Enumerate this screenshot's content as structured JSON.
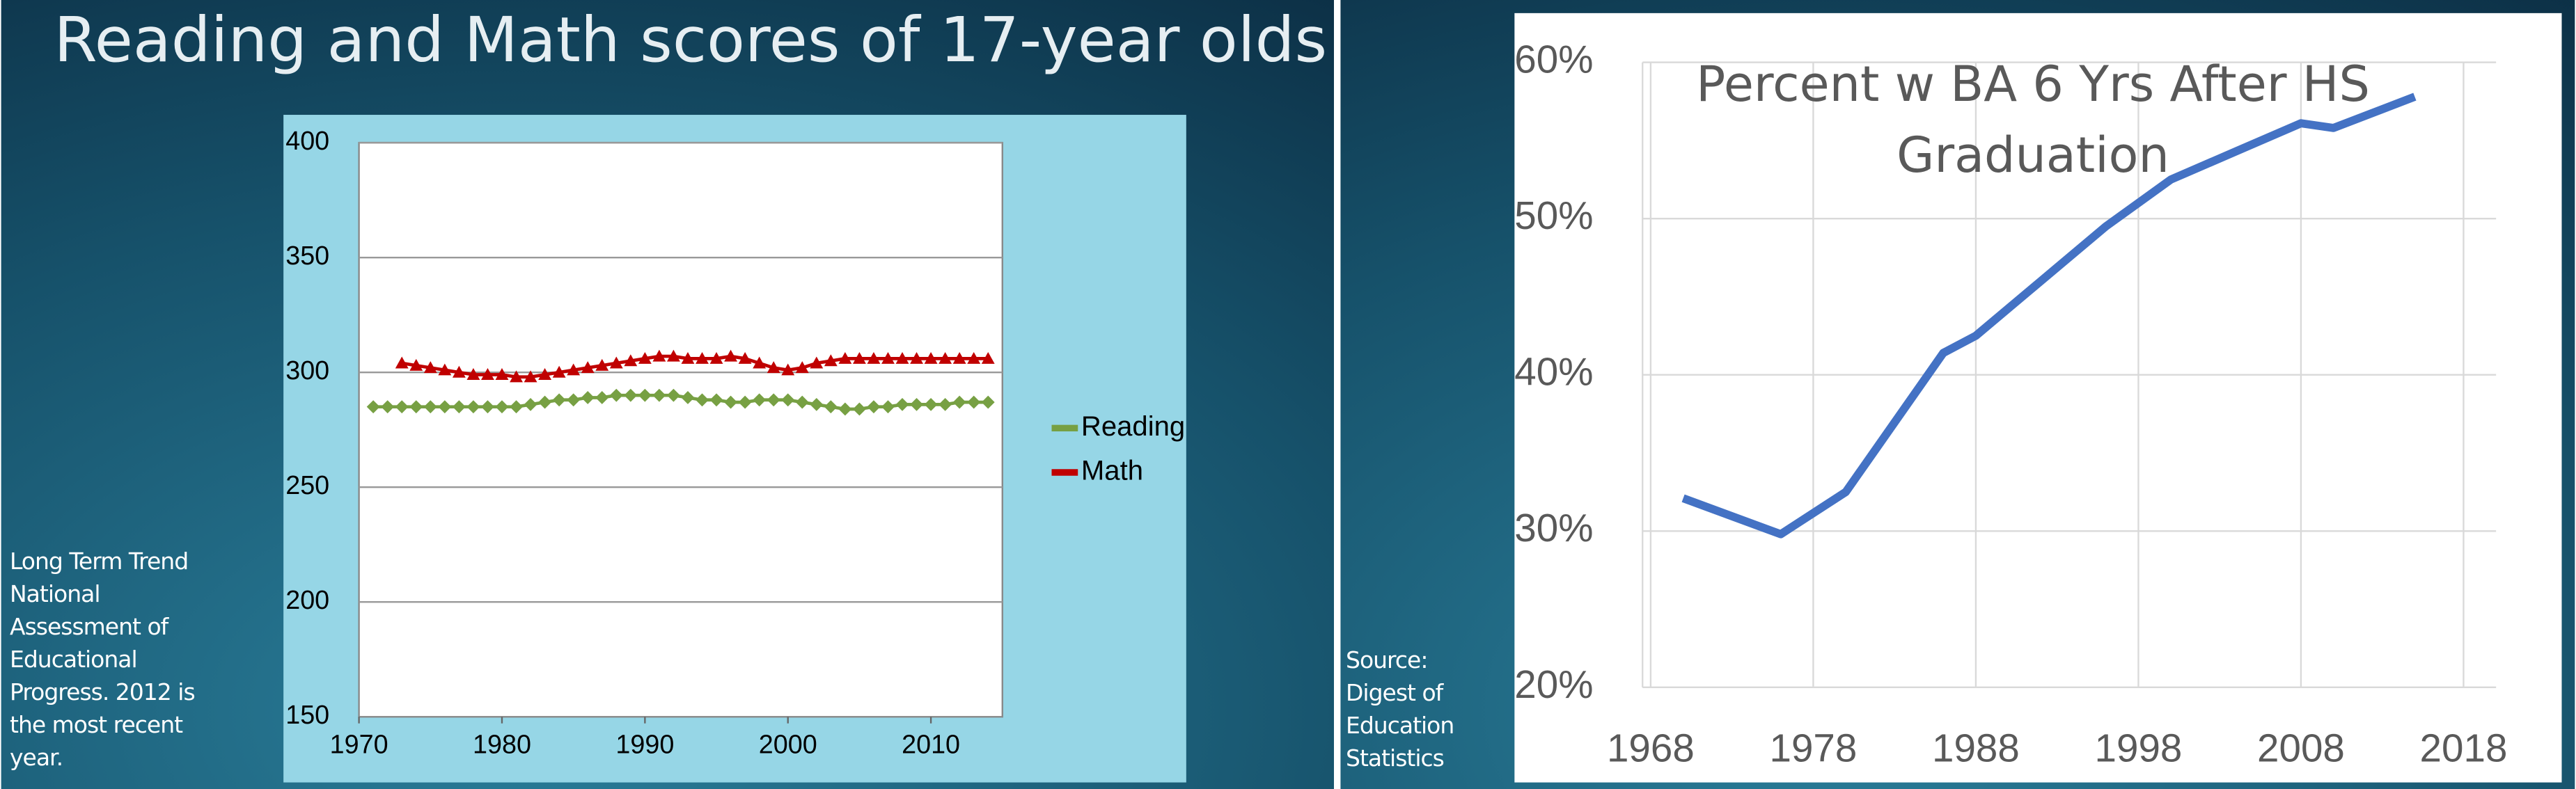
{
  "chart_data": [
    {
      "type": "line",
      "title": "Reading and Math scores of 17-year olds",
      "note": "Long Term Trend National Assessment of Educational Progress. 2012 is the most recent year.",
      "x": [
        1971,
        1972,
        1973,
        1974,
        1975,
        1976,
        1977,
        1978,
        1979,
        1980,
        1981,
        1982,
        1983,
        1984,
        1985,
        1986,
        1987,
        1988,
        1989,
        1990,
        1991,
        1992,
        1993,
        1994,
        1995,
        1996,
        1997,
        1998,
        1999,
        2000,
        2001,
        2002,
        2003,
        2004,
        2005,
        2006,
        2007,
        2008,
        2009,
        2010,
        2011,
        2012,
        2013,
        2014
      ],
      "series": [
        {
          "name": "Reading",
          "color": "#77a043",
          "marker": "diamond",
          "values": [
            285,
            285,
            285,
            285,
            285,
            285,
            285,
            285,
            285,
            285,
            285,
            286,
            287,
            288,
            288,
            289,
            289,
            290,
            290,
            290,
            290,
            290,
            289,
            288,
            288,
            287,
            287,
            288,
            288,
            288,
            287,
            286,
            285,
            284,
            284,
            285,
            285,
            286,
            286,
            286,
            286,
            287,
            287,
            287
          ]
        },
        {
          "name": "Math",
          "color": "#c00000",
          "marker": "triangle",
          "values": [
            null,
            null,
            304,
            303,
            302,
            301,
            300,
            299,
            299,
            299,
            298,
            298,
            299,
            300,
            301,
            302,
            303,
            304,
            305,
            306,
            307,
            307,
            306,
            306,
            306,
            307,
            306,
            304,
            302,
            301,
            302,
            304,
            305,
            306,
            306,
            306,
            306,
            306,
            306,
            306,
            306,
            306,
            306,
            306
          ]
        }
      ],
      "xlim": [
        1970,
        2015
      ],
      "xticks": [
        1970,
        1980,
        1990,
        2000,
        2010
      ],
      "ylim": [
        150,
        400
      ],
      "yticks": [
        150,
        200,
        250,
        300,
        350,
        400
      ],
      "grid": true,
      "legend": "right"
    },
    {
      "type": "line",
      "title": "Percent w BA 6 Yrs After HS Graduation",
      "note": "Source: Digest of Education Statistics",
      "x": [
        1970,
        1976,
        1980,
        1986,
        1988,
        1992,
        1996,
        2000,
        2004,
        2008,
        2010,
        2015
      ],
      "series": [
        {
          "color": "#4472c4",
          "values": [
            32.1,
            29.8,
            32.5,
            41.4,
            42.5,
            46,
            49.5,
            52.5,
            54.3,
            56.1,
            55.8,
            57.8
          ]
        }
      ],
      "xlim": [
        1967.5,
        2020
      ],
      "xticks": [
        1968,
        1978,
        1988,
        1998,
        2008,
        2018
      ],
      "ylim": [
        20,
        60
      ],
      "yticks": [
        {
          "value": 20,
          "label": "20%"
        },
        {
          "value": 30,
          "label": "30%"
        },
        {
          "value": 40,
          "label": "40%"
        },
        {
          "value": 50,
          "label": "50%"
        },
        {
          "value": 60,
          "label": "60%"
        }
      ],
      "grid": true
    }
  ]
}
